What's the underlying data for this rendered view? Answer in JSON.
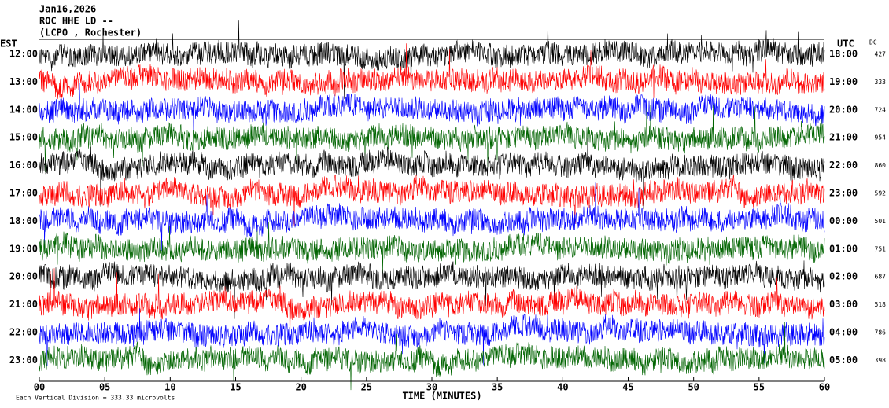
{
  "chart_data": {
    "type": "helicorder",
    "date": "Jan16,2026",
    "station": "ROC HHE LD --",
    "location": "(LCPO , Rochester)",
    "left_axis_title": "EST",
    "right_axis_title": "UTC",
    "dc_title": "DC",
    "xlabel": "TIME (MINUTES)",
    "scale_note": "Each Vertical Division =  333.33 microvolts",
    "categories": [
      "12:00",
      "13:00",
      "14:00",
      "15:00",
      "16:00",
      "17:00",
      "18:00",
      "19:00",
      "20:00",
      "21:00",
      "22:00",
      "23:00"
    ],
    "utc_labels": [
      "18:00",
      "19:00",
      "20:00",
      "21:00",
      "22:00",
      "23:00",
      "00:00",
      "01:00",
      "02:00",
      "03:00",
      "04:00",
      "05:00"
    ],
    "dc_values": [
      427,
      333,
      724,
      954,
      860,
      592,
      501,
      751,
      687,
      518,
      786,
      398
    ],
    "trace_colors": [
      "#000000",
      "#ff0000",
      "#0000ff",
      "#006400"
    ],
    "xlim": [
      0,
      60
    ],
    "xticks": [
      {
        "value": 0,
        "label": "00"
      },
      {
        "value": 5,
        "label": "05"
      },
      {
        "value": 10,
        "label": "10"
      },
      {
        "value": 15,
        "label": "15"
      },
      {
        "value": 20,
        "label": "20"
      },
      {
        "value": 25,
        "label": "25"
      },
      {
        "value": 30,
        "label": "30"
      },
      {
        "value": 35,
        "label": "35"
      },
      {
        "value": 40,
        "label": "40"
      },
      {
        "value": 45,
        "label": "45"
      },
      {
        "value": 50,
        "label": "50"
      },
      {
        "value": 55,
        "label": "55"
      },
      {
        "value": 60,
        "label": "60"
      }
    ]
  }
}
